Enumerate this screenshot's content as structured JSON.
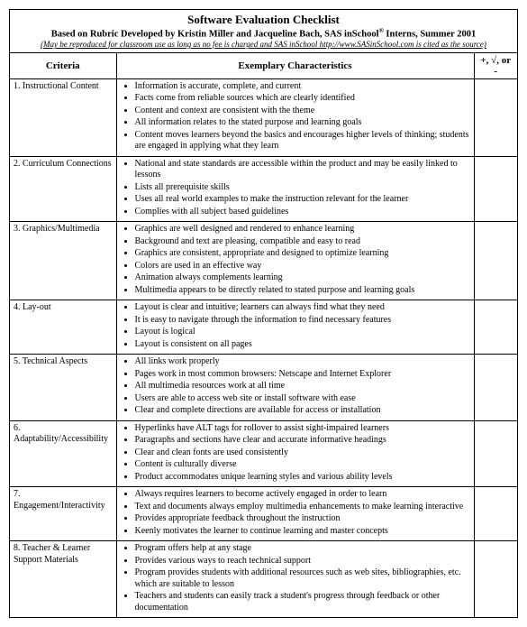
{
  "header": {
    "title": "Software Evaluation Checklist",
    "subtitle_prefix": "Based on Rubric Developed by Kristin Miller and Jacqueline Bach, SAS inSchool",
    "subtitle_sup": "®",
    "subtitle_suffix": " Interns, Summer 2001",
    "reproduce_note": "(May be reproduced for classroom use as long as no fee is charged and SAS inSchool http://www.SASinSchool.com is cited as the source)"
  },
  "columns": {
    "criteria": "Criteria",
    "chars": "Exemplary Characteristics",
    "rating": "+, √, or -"
  },
  "rows": [
    {
      "criteria": "1.  Instructional Content",
      "bullets": [
        "Information is accurate, complete, and current",
        "Facts come from reliable sources which are clearly identified",
        "Content and context are consistent with the theme",
        "All information relates to the stated purpose and learning goals",
        "Content moves learners beyond the basics and encourages higher levels of thinking; students are engaged in applying what they learn"
      ]
    },
    {
      "criteria": "2.  Curriculum Connections",
      "bullets": [
        "National and state standards are accessible within the product and may be easily linked to lessons",
        "Lists all prerequisite skills",
        "Uses all real world examples to make the instruction relevant for the learner",
        "Complies with all subject based guidelines"
      ]
    },
    {
      "criteria": "3.  Graphics/Multimedia",
      "bullets": [
        "Graphics are well designed and rendered to enhance learning",
        "Background and text are pleasing, compatible and easy to read",
        "Graphics are consistent, appropriate and designed to optimize learning",
        "Colors are used in an effective way",
        "Animation always complements learning",
        "Multimedia appears to be directly related to stated purpose and learning goals"
      ]
    },
    {
      "criteria": "4.  Lay-out",
      "bullets": [
        "Layout is clear and intuitive; learners can always find what they need",
        "It is easy to navigate through the information to find necessary features",
        "Layout is logical",
        "Layout is consistent on all pages"
      ]
    },
    {
      "criteria": "5.  Technical Aspects",
      "bullets": [
        "All links work properly",
        "Pages work in most common browsers: Netscape and Internet Explorer",
        "All multimedia resources work at all time",
        "Users are able to access web site or install software with ease",
        "Clear and complete directions are available for access or installation"
      ]
    },
    {
      "criteria": "6.  Adaptability/Accessibility",
      "bullets": [
        "Hyperlinks have ALT tags for rollover to assist sight-impaired learners",
        "Paragraphs and sections have clear and accurate informative headings",
        "Clear and clean fonts are used consistently",
        "Content is culturally diverse",
        "Product accommodates unique learning styles and various ability levels"
      ]
    },
    {
      "criteria": "7.  Engagement/Interactivity",
      "bullets": [
        "Always requires learners to become actively engaged in order to learn",
        "Text and documents always employ multimedia enhancements to make learning interactive",
        "Provides appropriate feedback throughout the instruction",
        "Keenly motivates the learner to continue learning and master concepts"
      ]
    },
    {
      "criteria": "8.  Teacher & Learner\n      Support Materials",
      "bullets": [
        "Program offers help at any stage",
        "Provides various ways to reach technical support",
        "Program provides students with additional resources such as web sites, bibliographies, etc. which are suitable to lesson",
        "Teachers and students can easily track a student's progress through feedback or other documentation"
      ]
    }
  ]
}
